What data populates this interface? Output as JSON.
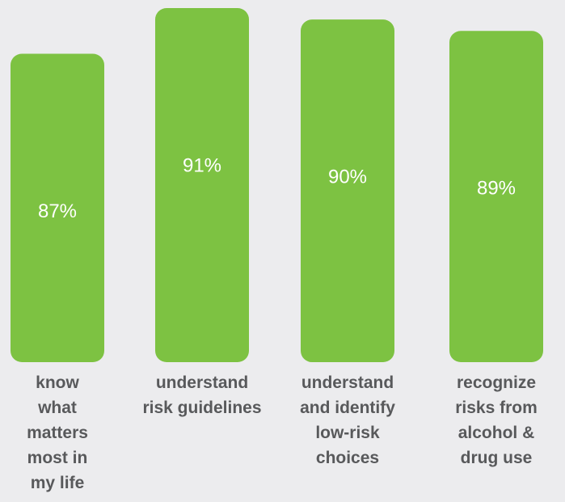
{
  "chart_data": {
    "type": "bar",
    "categories": [
      "know what matters most in my life",
      "understand risk guidelines",
      "understand and identify low-risk choices",
      "recognize risks from alcohol & drug use"
    ],
    "values": [
      87,
      91,
      90,
      89
    ],
    "value_labels": [
      "87%",
      "91%",
      "90%",
      "89%"
    ],
    "color": "#7dc242",
    "ylim": [
      60,
      91
    ]
  }
}
